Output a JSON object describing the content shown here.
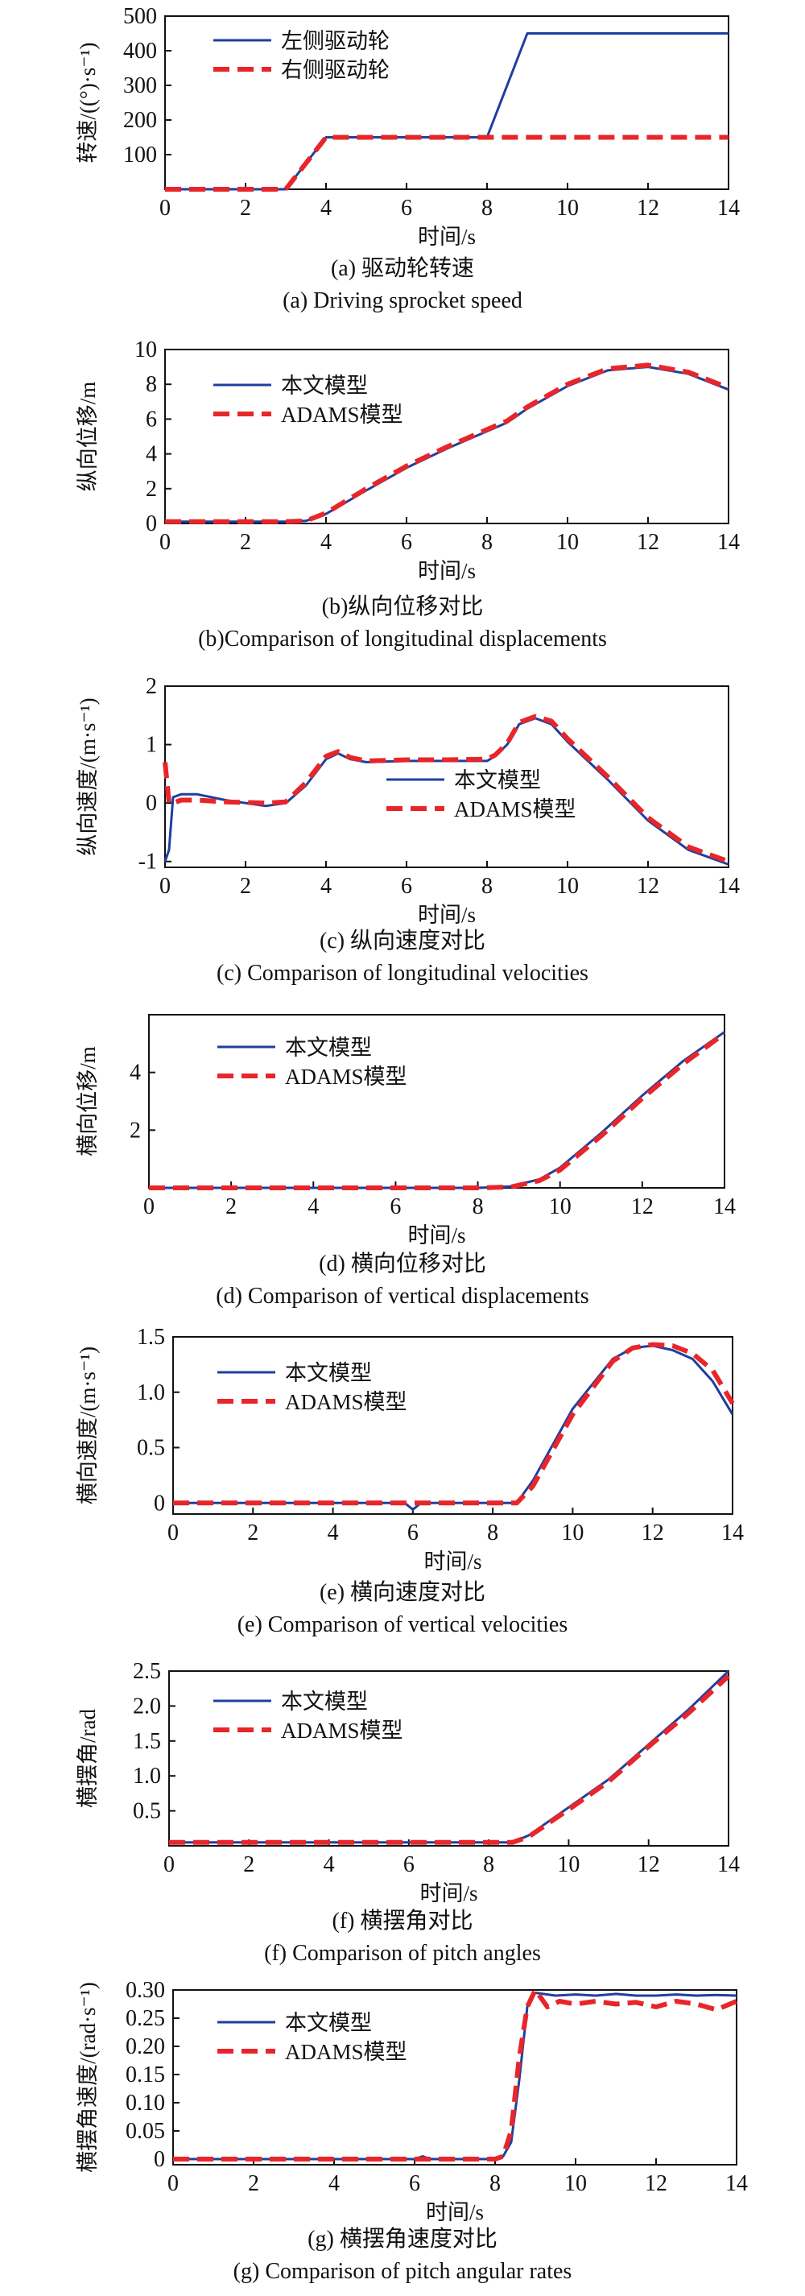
{
  "colors": {
    "blue": "#1f3f9e",
    "red": "#e8262a",
    "axis": "#111111"
  },
  "chart_data": [
    {
      "type": "line",
      "xlabel": "时间/s",
      "ylabel": "转速/((°)·s⁻¹)",
      "xlim": [
        0,
        14
      ],
      "ylim": [
        0,
        500
      ],
      "xticks": [
        0,
        2,
        4,
        6,
        8,
        10,
        12,
        14
      ],
      "yticks": [
        100,
        200,
        300,
        400,
        500
      ],
      "yticklabels": [
        "100",
        "200",
        "300",
        "400",
        "500"
      ],
      "legend_position": "top-left",
      "caption_cn": "(a) 驱动轮转速",
      "caption_en": "(a) Driving sprocket speed",
      "series": [
        {
          "name": "左侧驱动轮",
          "style": "solid",
          "color": "#1f3f9e",
          "x": [
            0,
            3,
            4,
            8,
            9,
            14
          ],
          "y": [
            0,
            0,
            150,
            150,
            450,
            450
          ]
        },
        {
          "name": "右侧驱动轮",
          "style": "dashed",
          "color": "#e8262a",
          "x": [
            0,
            3,
            4,
            14
          ],
          "y": [
            0,
            0,
            150,
            150
          ]
        }
      ]
    },
    {
      "type": "line",
      "xlabel": "时间/s",
      "ylabel": "纵向位移/m",
      "xlim": [
        0,
        14
      ],
      "ylim": [
        0,
        10
      ],
      "xticks": [
        0,
        2,
        4,
        6,
        8,
        10,
        12,
        14
      ],
      "yticks": [
        0,
        2,
        4,
        6,
        8,
        10
      ],
      "yticklabels": [
        "0",
        "2",
        "4",
        "6",
        "8",
        "10"
      ],
      "legend_position": "top-left",
      "caption_cn": "(b)纵向位移对比",
      "caption_en": "(b)Comparison of longitudinal displacements",
      "series": [
        {
          "name": "本文模型",
          "style": "solid",
          "color": "#1f3f9e",
          "x": [
            0,
            1,
            2,
            3,
            3.5,
            4,
            5,
            6,
            7,
            8,
            8.5,
            9,
            10,
            11,
            12,
            13,
            14
          ],
          "y": [
            0.1,
            0.1,
            0.1,
            0.1,
            0.15,
            0.55,
            1.9,
            3.2,
            4.3,
            5.3,
            5.8,
            6.6,
            7.9,
            8.8,
            9.0,
            8.6,
            7.7
          ]
        },
        {
          "name": "ADAMS模型",
          "style": "dashed",
          "color": "#e8262a",
          "x": [
            0,
            1,
            2,
            3,
            3.5,
            4,
            5,
            6,
            7,
            8,
            8.5,
            9,
            10,
            11,
            12,
            13,
            14
          ],
          "y": [
            0.1,
            0.1,
            0.1,
            0.1,
            0.15,
            0.6,
            2.0,
            3.3,
            4.4,
            5.4,
            5.9,
            6.7,
            8.0,
            8.9,
            9.1,
            8.7,
            7.8
          ]
        }
      ]
    },
    {
      "type": "line",
      "xlabel": "时间/s",
      "ylabel": "纵向速度/(m·s⁻¹)",
      "xlim": [
        0,
        14
      ],
      "ylim": [
        -1.1,
        2
      ],
      "xticks": [
        0,
        2,
        4,
        6,
        8,
        10,
        12,
        14
      ],
      "yticks": [
        -1,
        0,
        1,
        2
      ],
      "yticklabels": [
        "-1",
        "0",
        "1",
        "2"
      ],
      "legend_position": "center-right",
      "caption_cn": "(c) 纵向速度对比",
      "caption_en": "(c) Comparison of longitudinal velocities",
      "series": [
        {
          "name": "本文模型",
          "style": "solid",
          "color": "#1f3f9e",
          "x": [
            0,
            0.1,
            0.2,
            0.4,
            0.8,
            1.5,
            2.5,
            3.0,
            3.5,
            4.0,
            4.3,
            4.6,
            5,
            6,
            7,
            8,
            8.2,
            8.5,
            8.8,
            9.2,
            9.6,
            10,
            11,
            12,
            13,
            14
          ],
          "y": [
            -1.0,
            -0.8,
            0.1,
            0.15,
            0.15,
            0.05,
            -0.05,
            0.0,
            0.3,
            0.75,
            0.85,
            0.75,
            0.7,
            0.72,
            0.72,
            0.72,
            0.8,
            1.0,
            1.35,
            1.45,
            1.35,
            1.05,
            0.4,
            -0.3,
            -0.8,
            -1.05
          ]
        },
        {
          "name": "ADAMS模型",
          "style": "dashed",
          "color": "#e8262a",
          "x": [
            0,
            0.1,
            0.2,
            0.4,
            0.8,
            1.5,
            2.5,
            3.0,
            3.5,
            4.0,
            4.3,
            4.6,
            5,
            6,
            7,
            8,
            8.2,
            8.5,
            8.8,
            9.2,
            9.6,
            10,
            11,
            12,
            13,
            14
          ],
          "y": [
            0.7,
            0.0,
            0.0,
            0.05,
            0.05,
            0.02,
            0.0,
            0.02,
            0.35,
            0.8,
            0.88,
            0.78,
            0.72,
            0.74,
            0.74,
            0.75,
            0.82,
            1.02,
            1.38,
            1.48,
            1.4,
            1.1,
            0.45,
            -0.25,
            -0.75,
            -1.0
          ]
        }
      ]
    },
    {
      "type": "line",
      "xlabel": "时间/s",
      "ylabel": "横向位移/m",
      "xlim": [
        0,
        14
      ],
      "ylim": [
        0,
        6
      ],
      "xticks": [
        0,
        2,
        4,
        6,
        8,
        10,
        12,
        14
      ],
      "yticks": [
        2,
        4
      ],
      "yticklabels": [
        "2",
        "4"
      ],
      "legend_position": "top-left",
      "caption_cn": "(d) 横向位移对比",
      "caption_en": "(d) Comparison of vertical displacements",
      "series": [
        {
          "name": "本文模型",
          "style": "solid",
          "color": "#1f3f9e",
          "x": [
            0,
            2,
            4,
            6,
            8,
            8.8,
            9.5,
            10,
            11,
            12,
            13,
            14
          ],
          "y": [
            0,
            0,
            0,
            0,
            0,
            0.05,
            0.3,
            0.7,
            1.9,
            3.2,
            4.4,
            5.4
          ]
        },
        {
          "name": "ADAMS模型",
          "style": "dashed",
          "color": "#e8262a",
          "x": [
            0,
            2,
            4,
            6,
            8,
            8.8,
            9.5,
            10,
            11,
            12,
            13,
            14
          ],
          "y": [
            0,
            0,
            0,
            0,
            0,
            0.03,
            0.25,
            0.62,
            1.8,
            3.1,
            4.3,
            5.35
          ]
        }
      ]
    },
    {
      "type": "line",
      "xlabel": "时间/s",
      "ylabel": "横向速度/(m·s⁻¹)",
      "xlim": [
        0,
        14
      ],
      "ylim": [
        -0.1,
        1.5
      ],
      "xticks": [
        0,
        2,
        4,
        6,
        8,
        10,
        12,
        14
      ],
      "yticks": [
        0,
        0.5,
        1.0,
        1.5
      ],
      "yticklabels": [
        "0",
        "0.5",
        "1.0",
        "1.5"
      ],
      "legend_position": "top-left",
      "caption_cn": "(e) 横向速度对比",
      "caption_en": "(e) Comparison of vertical velocities",
      "series": [
        {
          "name": "本文模型",
          "style": "solid",
          "color": "#1f3f9e",
          "x": [
            0,
            2,
            4,
            5.8,
            6.0,
            6.2,
            6.4,
            8,
            8.6,
            9,
            10,
            11,
            11.5,
            12,
            12.5,
            13,
            13.5,
            14
          ],
          "y": [
            0,
            0,
            0,
            0,
            -0.06,
            0,
            0,
            0,
            0,
            0.2,
            0.85,
            1.3,
            1.4,
            1.42,
            1.38,
            1.3,
            1.1,
            0.8
          ]
        },
        {
          "name": "ADAMS模型",
          "style": "dashed",
          "color": "#e8262a",
          "x": [
            0,
            2,
            4,
            6,
            8,
            8.6,
            9,
            10,
            11,
            11.5,
            12,
            12.5,
            13,
            13.5,
            14
          ],
          "y": [
            0,
            0,
            0,
            0,
            0,
            0,
            0.15,
            0.8,
            1.28,
            1.4,
            1.43,
            1.42,
            1.35,
            1.2,
            0.9
          ]
        }
      ]
    },
    {
      "type": "line",
      "xlabel": "时间/s",
      "ylabel": "横摆角/rad",
      "xlim": [
        0,
        14
      ],
      "ylim": [
        0,
        2.5
      ],
      "xticks": [
        0,
        2,
        4,
        6,
        8,
        10,
        12,
        14
      ],
      "yticks": [
        0.5,
        1.0,
        1.5,
        2.0,
        2.5
      ],
      "yticklabels": [
        "0.5",
        "1.0",
        "1.5",
        "2.0",
        "2.5"
      ],
      "legend_position": "top-left",
      "caption_cn": "(f) 横摆角对比",
      "caption_en": "(f) Comparison of pitch angles",
      "series": [
        {
          "name": "本文模型",
          "style": "solid",
          "color": "#1f3f9e",
          "x": [
            0,
            2,
            4,
            6,
            8,
            8.6,
            9,
            10,
            11,
            12,
            13,
            14
          ],
          "y": [
            0.05,
            0.05,
            0.05,
            0.05,
            0.05,
            0.05,
            0.15,
            0.55,
            0.95,
            1.45,
            1.95,
            2.5
          ]
        },
        {
          "name": "ADAMS模型",
          "style": "dashed",
          "color": "#e8262a",
          "x": [
            0,
            2,
            4,
            6,
            8,
            8.6,
            9,
            10,
            11,
            12,
            13,
            14
          ],
          "y": [
            0.05,
            0.05,
            0.05,
            0.05,
            0.05,
            0.05,
            0.13,
            0.52,
            0.92,
            1.42,
            1.9,
            2.43
          ]
        }
      ]
    },
    {
      "type": "line",
      "xlabel": "时间/s",
      "ylabel": "横摆角速度/(rad·s⁻¹)",
      "xlim": [
        0,
        14
      ],
      "ylim": [
        -0.01,
        0.3
      ],
      "xticks": [
        0,
        2,
        4,
        6,
        8,
        10,
        12,
        14
      ],
      "yticks": [
        0,
        0.05,
        0.1,
        0.15,
        0.2,
        0.25,
        0.3
      ],
      "yticklabels": [
        "0",
        "0.05",
        "0.10",
        "0.15",
        "0.20",
        "0.25",
        "0.30"
      ],
      "legend_position": "top-left",
      "caption_cn": "(g) 横摆角速度对比",
      "caption_en": "(g) Comparison of pitch angular rates",
      "series": [
        {
          "name": "本文模型",
          "style": "solid",
          "color": "#1f3f9e",
          "x": [
            0,
            2,
            4,
            6,
            6.2,
            6.4,
            8,
            8.2,
            8.4,
            8.6,
            8.8,
            9.0,
            9.5,
            10,
            10.5,
            11,
            11.5,
            12,
            12.5,
            13,
            13.5,
            14
          ],
          "y": [
            0,
            0,
            0,
            0,
            0.005,
            0,
            0,
            0.005,
            0.03,
            0.14,
            0.27,
            0.295,
            0.29,
            0.292,
            0.29,
            0.293,
            0.29,
            0.29,
            0.292,
            0.29,
            0.291,
            0.29
          ]
        },
        {
          "name": "ADAMS模型",
          "style": "dashed",
          "color": "#e8262a",
          "x": [
            0,
            2,
            4,
            6,
            8,
            8.2,
            8.4,
            8.6,
            8.8,
            9.0,
            9.3,
            9.6,
            10,
            10.5,
            11,
            11.5,
            12,
            12.5,
            13,
            13.5,
            14
          ],
          "y": [
            0,
            0,
            0,
            0,
            0,
            0.005,
            0.05,
            0.18,
            0.27,
            0.3,
            0.27,
            0.28,
            0.275,
            0.28,
            0.275,
            0.278,
            0.27,
            0.28,
            0.275,
            0.265,
            0.28
          ]
        }
      ]
    }
  ]
}
